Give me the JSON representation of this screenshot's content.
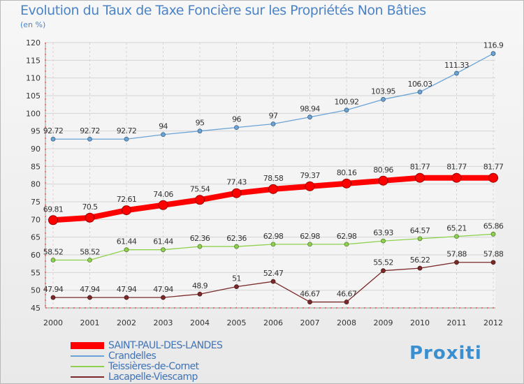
{
  "chart_title": "Evolution du Taux de Taxe Foncière sur les Propriétés Non Bâties",
  "unit_label": "(en %)",
  "brand_logo": "Proxiti",
  "chart_data": {
    "type": "line",
    "title": "Evolution du Taux de Taxe Foncière sur les Propriétés Non Bâties",
    "ylabel": "(en %)",
    "xlabel": "",
    "ylim": [
      45,
      120
    ],
    "yticks": [
      45,
      50,
      55,
      60,
      65,
      70,
      75,
      80,
      85,
      90,
      95,
      100,
      105,
      110,
      115,
      120
    ],
    "categories": [
      "2000",
      "2001",
      "2002",
      "2003",
      "2004",
      "2005",
      "2006",
      "2007",
      "2008",
      "2009",
      "2010",
      "2011",
      "2012"
    ],
    "grid": true,
    "legend_position": "bottom-left",
    "series": [
      {
        "name": "SAINT-PAUL-DES-LANDES",
        "color": "#ff0000",
        "emphasis": "thick",
        "values": [
          69.81,
          70.5,
          72.61,
          74.06,
          75.54,
          77.43,
          78.58,
          79.37,
          80.16,
          80.96,
          81.77,
          81.77,
          81.77
        ],
        "labels": [
          "69.81",
          "70.5",
          "72.61",
          "74.06",
          "75.54",
          "77.43",
          "78.58",
          "79.37",
          "80.16",
          "80.96",
          "81.77",
          "81.77",
          "81.77"
        ]
      },
      {
        "name": "Crandelles",
        "color": "#6aa3d6",
        "values": [
          92.72,
          92.72,
          92.72,
          94,
          95,
          96,
          97,
          98.94,
          100.92,
          103.95,
          106.03,
          111.33,
          116.9
        ],
        "labels": [
          "92.72",
          "92.72",
          "92.72",
          "94",
          "95",
          "96",
          "97",
          "98.94",
          "100.92",
          "103.95",
          "106.03",
          "111.33",
          "116.9"
        ]
      },
      {
        "name": "Teissières-de-Cornet",
        "color": "#8fd14f",
        "values": [
          58.52,
          58.52,
          61.44,
          61.44,
          62.36,
          62.36,
          62.98,
          62.98,
          62.98,
          63.93,
          64.57,
          65.21,
          65.86
        ],
        "labels": [
          "58.52",
          "58.52",
          "61.44",
          "61.44",
          "62.36",
          "62.36",
          "62.98",
          "62.98",
          "62.98",
          "63.93",
          "64.57",
          "65.21",
          "65.86"
        ]
      },
      {
        "name": "Lacapelle-Viescamp",
        "color": "#7a2a2a",
        "values": [
          47.94,
          47.94,
          47.94,
          47.94,
          48.9,
          51,
          52.47,
          46.67,
          46.67,
          55.52,
          56.22,
          57.88,
          57.88
        ],
        "labels": [
          "47.94",
          "47.94",
          "47.94",
          "47.94",
          "48.9",
          "51",
          "52.47",
          "46.67",
          "46.67",
          "55.52",
          "56.22",
          "57.88",
          "57.88"
        ]
      }
    ]
  }
}
